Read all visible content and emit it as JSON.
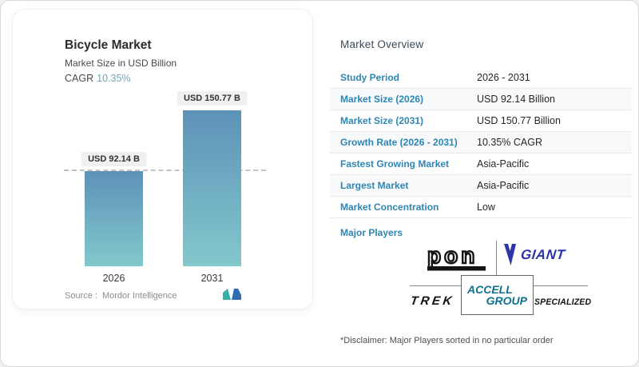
{
  "colors": {
    "accent_blue": "#2e86b5",
    "accent_teal": "#6fa7b4",
    "bar_top": "#5d92b8",
    "bar_bottom": "#83c8cc",
    "giant_blue": "#2b35a9",
    "accell_teal": "#0e7190"
  },
  "chart_card": {
    "title": "Bicycle Market",
    "subtitle": "Market Size in USD Billion",
    "cagr_label": "CAGR",
    "cagr_value": "10.35%",
    "source_label": "Source :",
    "source_name": "Mordor Intelligence"
  },
  "chart_data": {
    "type": "bar",
    "title": "Bicycle Market",
    "subtitle": "Market Size in USD Billion",
    "unit": "USD Billion",
    "cagr": "10.35%",
    "categories": [
      "2026",
      "2031"
    ],
    "values": [
      92.14,
      150.77
    ],
    "bar_labels": [
      "USD 92.14 B",
      "USD 150.77 B"
    ],
    "reference_line": 92.14,
    "legend": "none",
    "grid": "off",
    "source": "Mordor Intelligence"
  },
  "overview": {
    "heading": "Market Overview",
    "rows": [
      {
        "label": "Study Period",
        "value": "2026 - 2031"
      },
      {
        "label": "Market Size (2026)",
        "value": "USD 92.14 Billion"
      },
      {
        "label": "Market Size (2031)",
        "value": "USD 150.77 Billion"
      },
      {
        "label": "Growth Rate (2026 - 2031)",
        "value": "10.35% CAGR"
      },
      {
        "label": "Fastest Growing Market",
        "value": "Asia-Pacific"
      },
      {
        "label": "Largest Market",
        "value": "Asia-Pacific"
      },
      {
        "label": "Market Concentration",
        "value": "Low"
      }
    ],
    "major_players_label": "Major Players",
    "major_players": [
      "Pon",
      "Giant",
      "Trek",
      "Accell Group",
      "Specialized"
    ],
    "disclaimer": "*Disclaimer: Major Players sorted in no particular order"
  },
  "logos": {
    "pon": "pon",
    "giant": "GIANT",
    "trek": "TREK",
    "accell_line1": "ACCELL",
    "accell_line2": "GROUP",
    "specialized": "SPECIALIZED"
  }
}
